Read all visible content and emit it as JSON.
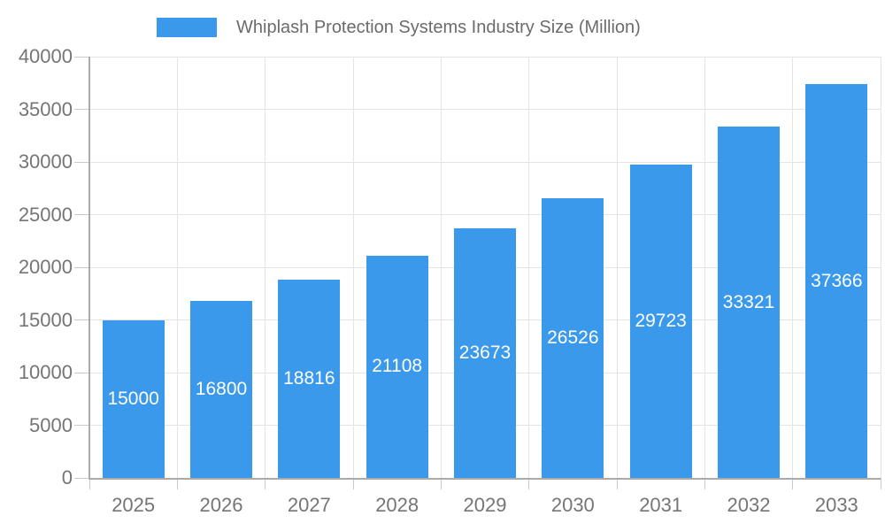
{
  "chart_data": {
    "type": "bar",
    "title": "Whiplash Protection Systems Industry Size (Million)",
    "categories": [
      "2025",
      "2026",
      "2027",
      "2028",
      "2029",
      "2030",
      "2031",
      "2032",
      "2033"
    ],
    "values": [
      15000,
      16800,
      18816,
      21108,
      23673,
      26526,
      29723,
      33321,
      37366
    ],
    "series_name": "Whiplash Protection Systems Industry Size (Million)",
    "xlabel": "",
    "ylabel": "",
    "ylim": [
      0,
      40000
    ],
    "ytick_step": 5000,
    "ytick_labels": [
      "0",
      "5000",
      "10000",
      "15000",
      "20000",
      "25000",
      "30000",
      "35000",
      "40000"
    ],
    "grid": true,
    "legend_position": "top",
    "value_labels": "inside-center",
    "colors": {
      "bar": "#3b99ec",
      "bar_value_label": "#ffffff",
      "title_text": "#6b6b6b",
      "axis_label": "#757575",
      "gridline": "#e4e4e4",
      "axis_line": "#aaaaaa",
      "tick_mark": "#c9c9c9",
      "background": "#ffffff"
    }
  }
}
